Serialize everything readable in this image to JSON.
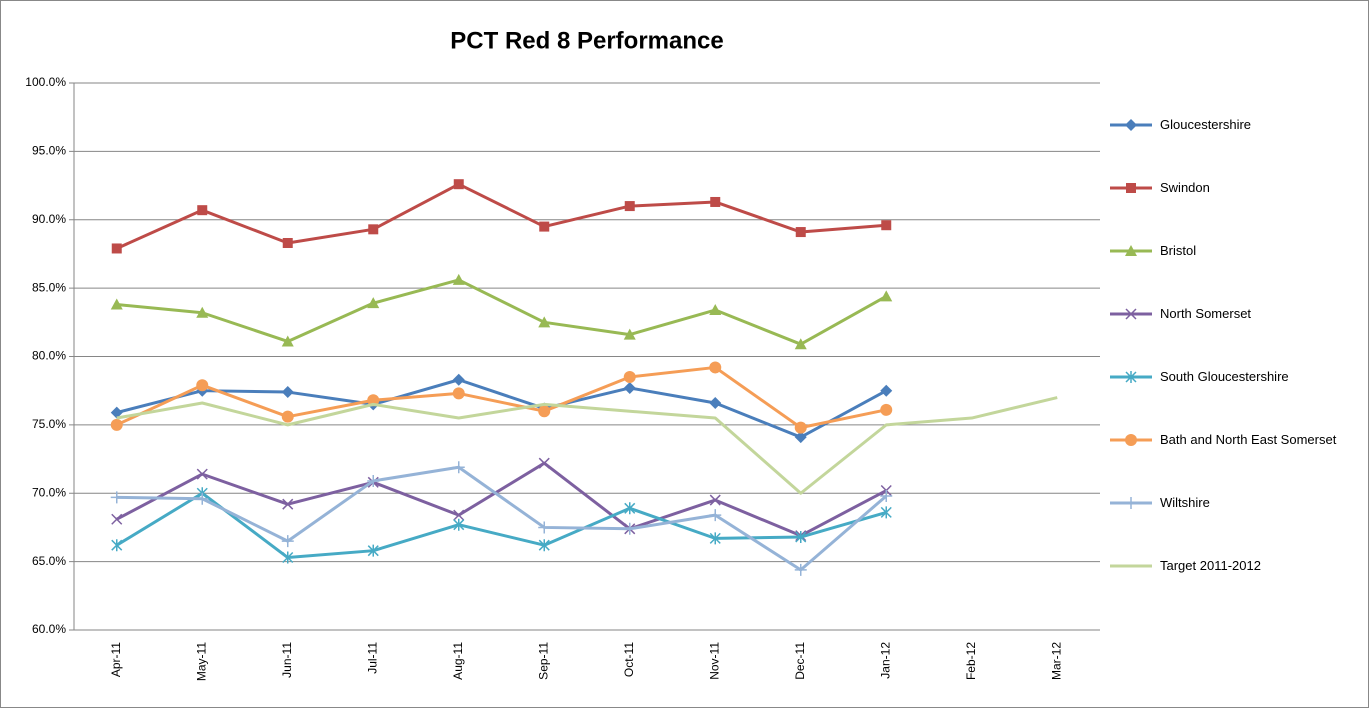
{
  "chart_data": {
    "type": "line",
    "title": "PCT Red 8 Performance",
    "categories": [
      "Apr-11",
      "May-11",
      "Jun-11",
      "Jul-11",
      "Aug-11",
      "Sep-11",
      "Oct-11",
      "Nov-11",
      "Dec-11",
      "Jan-12",
      "Feb-12",
      "Mar-12"
    ],
    "ylim": [
      60,
      100
    ],
    "yticks": [
      {
        "value": 60,
        "label": "60.0%"
      },
      {
        "value": 65,
        "label": "65.0%"
      },
      {
        "value": 70,
        "label": "70.0%"
      },
      {
        "value": 75,
        "label": "75.0%"
      },
      {
        "value": 80,
        "label": "80.0%"
      },
      {
        "value": 85,
        "label": "85.0%"
      },
      {
        "value": 90,
        "label": "90.0%"
      },
      {
        "value": 95,
        "label": "95.0%"
      },
      {
        "value": 100,
        "label": "100.0%"
      }
    ],
    "grid": true,
    "legend": "right",
    "series": [
      {
        "name": "Gloucestershire",
        "color": "#4a7ebb",
        "marker": "diamond",
        "values": [
          75.9,
          77.5,
          77.4,
          76.5,
          78.3,
          76.2,
          77.7,
          76.6,
          74.1,
          77.5,
          null,
          null
        ]
      },
      {
        "name": "Swindon",
        "color": "#be4b48",
        "marker": "square",
        "values": [
          87.9,
          90.7,
          88.3,
          89.3,
          92.6,
          89.5,
          91.0,
          91.3,
          89.1,
          89.6,
          null,
          null
        ]
      },
      {
        "name": "Bristol",
        "color": "#98b954",
        "marker": "triangle",
        "values": [
          83.8,
          83.2,
          81.1,
          83.9,
          85.6,
          82.5,
          81.6,
          83.4,
          80.9,
          84.4,
          null,
          null
        ]
      },
      {
        "name": "North Somerset",
        "color": "#7d60a0",
        "marker": "x",
        "values": [
          68.1,
          71.4,
          69.2,
          70.8,
          68.4,
          72.2,
          67.4,
          69.5,
          66.9,
          70.2,
          null,
          null
        ]
      },
      {
        "name": "South Gloucestershire",
        "color": "#46aac5",
        "marker": "star",
        "values": [
          66.2,
          70.0,
          65.3,
          65.8,
          67.7,
          66.2,
          68.9,
          66.7,
          66.8,
          68.6,
          null,
          null
        ]
      },
      {
        "name": "Bath and North East Somerset",
        "color": "#f59d56",
        "marker": "circle",
        "values": [
          75.0,
          77.9,
          75.6,
          76.8,
          77.3,
          76.0,
          78.5,
          79.2,
          74.8,
          76.1,
          null,
          null
        ]
      },
      {
        "name": "Wiltshire",
        "color": "#95b3d7",
        "marker": "plus",
        "values": [
          69.7,
          69.6,
          66.5,
          70.9,
          71.9,
          67.5,
          67.4,
          68.4,
          64.4,
          69.8,
          null,
          null
        ]
      },
      {
        "name": "Target 2011-2012",
        "color": "#c3d69b",
        "marker": "none",
        "values": [
          75.5,
          76.6,
          75.0,
          76.5,
          75.5,
          76.5,
          76.0,
          75.5,
          70.0,
          75.0,
          75.5,
          77.0
        ]
      }
    ]
  }
}
